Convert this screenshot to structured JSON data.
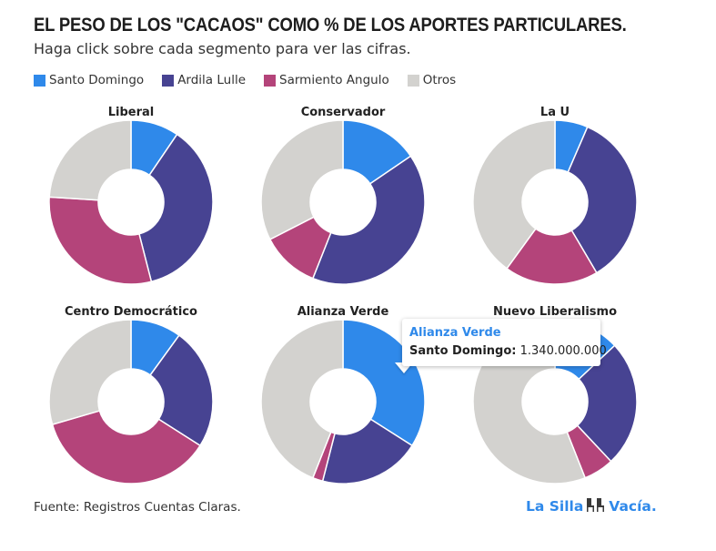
{
  "title": "EL PESO DE LOS \"CACAOS\" COMO % DE LOS APORTES PARTICULARES.",
  "subtitle": "Haga click sobre cada segmento para ver las cifras.",
  "legend": [
    {
      "label": "Santo Domingo",
      "color": "#2f89ea"
    },
    {
      "label": "Ardila Lulle",
      "color": "#474392"
    },
    {
      "label": "Sarmiento Angulo",
      "color": "#b4447a"
    },
    {
      "label": "Otros",
      "color": "#d3d2cf"
    }
  ],
  "chart_data": {
    "type": "pie",
    "variant": "donut",
    "series_names": [
      "Santo Domingo",
      "Ardila Lulle",
      "Sarmiento Angulo",
      "Otros"
    ],
    "colors": [
      "#2f89ea",
      "#474392",
      "#b4447a",
      "#d3d2cf"
    ],
    "charts": [
      {
        "title": "Liberal",
        "values": [
          9.5,
          36.5,
          30.0,
          24.0
        ]
      },
      {
        "title": "Conservador",
        "values": [
          15.5,
          40.5,
          11.5,
          32.5
        ]
      },
      {
        "title": "La U",
        "values": [
          6.5,
          35.0,
          18.5,
          40.0
        ]
      },
      {
        "title": "Centro Democrático",
        "values": [
          10.0,
          24.0,
          36.5,
          29.5
        ]
      },
      {
        "title": "Alianza Verde",
        "values": [
          34.0,
          20.0,
          2.0,
          44.0
        ]
      },
      {
        "title": "Nuevo Liberalismo",
        "values": [
          13.0,
          25.0,
          6.0,
          56.0
        ]
      }
    ]
  },
  "tooltip": {
    "title": "Alianza Verde",
    "label": "Santo Domingo",
    "value": "1.340.000.000"
  },
  "source": "Fuente: Registros Cuentas Claras.",
  "logo": {
    "left": "La Silla",
    "right": "Vacía."
  }
}
